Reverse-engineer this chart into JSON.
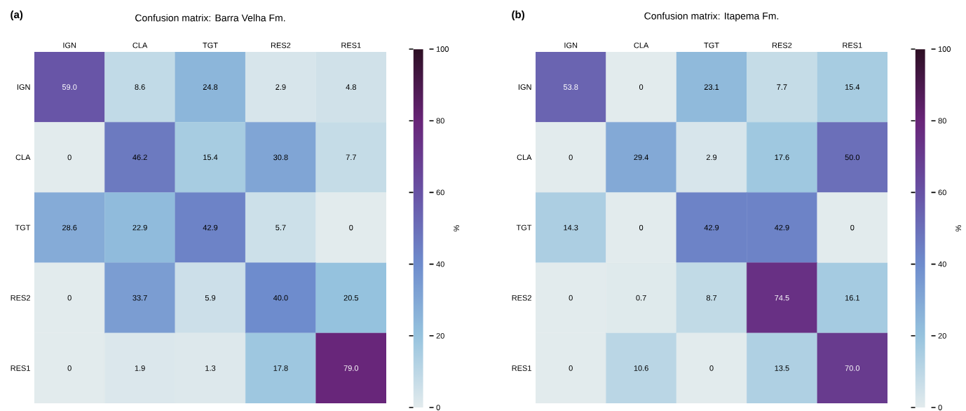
{
  "chart_data": [
    {
      "type": "heatmap",
      "title": "Confusion matrix: Barra Velha Fm.",
      "annotations": [
        "(a)"
      ],
      "clabel": "%",
      "categories": [
        "IGN",
        "CLA",
        "TGT",
        "RES2",
        "RES1"
      ],
      "y_categories": [
        "IGN",
        "CLA",
        "TGT",
        "RES2",
        "RES1"
      ],
      "cells": [
        [
          59.0,
          8.6,
          24.8,
          2.9,
          4.8
        ],
        [
          0,
          46.2,
          15.4,
          30.8,
          7.7
        ],
        [
          28.6,
          22.9,
          42.9,
          5.7,
          0
        ],
        [
          0,
          33.7,
          5.9,
          40.0,
          20.5
        ],
        [
          0,
          1.9,
          1.3,
          17.8,
          79.0
        ]
      ],
      "cell_labels": [
        [
          "59.0",
          "8.6",
          "24.8",
          "2.9",
          "4.8"
        ],
        [
          "0",
          "46.2",
          "15.4",
          "30.8",
          "7.7"
        ],
        [
          "28.6",
          "22.9",
          "42.9",
          "5.7",
          "0"
        ],
        [
          "0",
          "33.7",
          "5.9",
          "40.0",
          "20.5"
        ],
        [
          "0",
          "1.9",
          "1.3",
          "17.8",
          "79.0"
        ]
      ],
      "clim": [
        0,
        100
      ],
      "cticks": [
        0,
        20,
        40,
        60,
        80,
        100
      ]
    },
    {
      "type": "heatmap",
      "title": "Confusion matrix: Itapema Fm.",
      "annotations": [
        "(b)"
      ],
      "clabel": "%",
      "categories": [
        "IGN",
        "CLA",
        "TGT",
        "RES2",
        "RES1"
      ],
      "y_categories": [
        "IGN",
        "CLA",
        "TGT",
        "RES2",
        "RES1"
      ],
      "cells": [
        [
          53.8,
          0,
          23.1,
          7.7,
          15.4
        ],
        [
          0,
          29.4,
          2.9,
          17.6,
          50.0
        ],
        [
          14.3,
          0,
          42.9,
          42.9,
          0
        ],
        [
          0,
          0.7,
          8.7,
          74.5,
          16.1
        ],
        [
          0,
          10.6,
          0,
          13.5,
          70.0
        ]
      ],
      "cell_labels": [
        [
          "53.8",
          "0",
          "23.1",
          "7.7",
          "15.4"
        ],
        [
          "0",
          "29.4",
          "2.9",
          "17.6",
          "50.0"
        ],
        [
          "14.3",
          "0",
          "42.9",
          "42.9",
          "0"
        ],
        [
          "0",
          "0.7",
          "8.7",
          "74.5",
          "16.1"
        ],
        [
          "0",
          "10.6",
          "0",
          "13.5",
          "70.0"
        ]
      ],
      "clim": [
        0,
        100
      ],
      "cticks": [
        0,
        20,
        40,
        60,
        80,
        100
      ]
    }
  ]
}
